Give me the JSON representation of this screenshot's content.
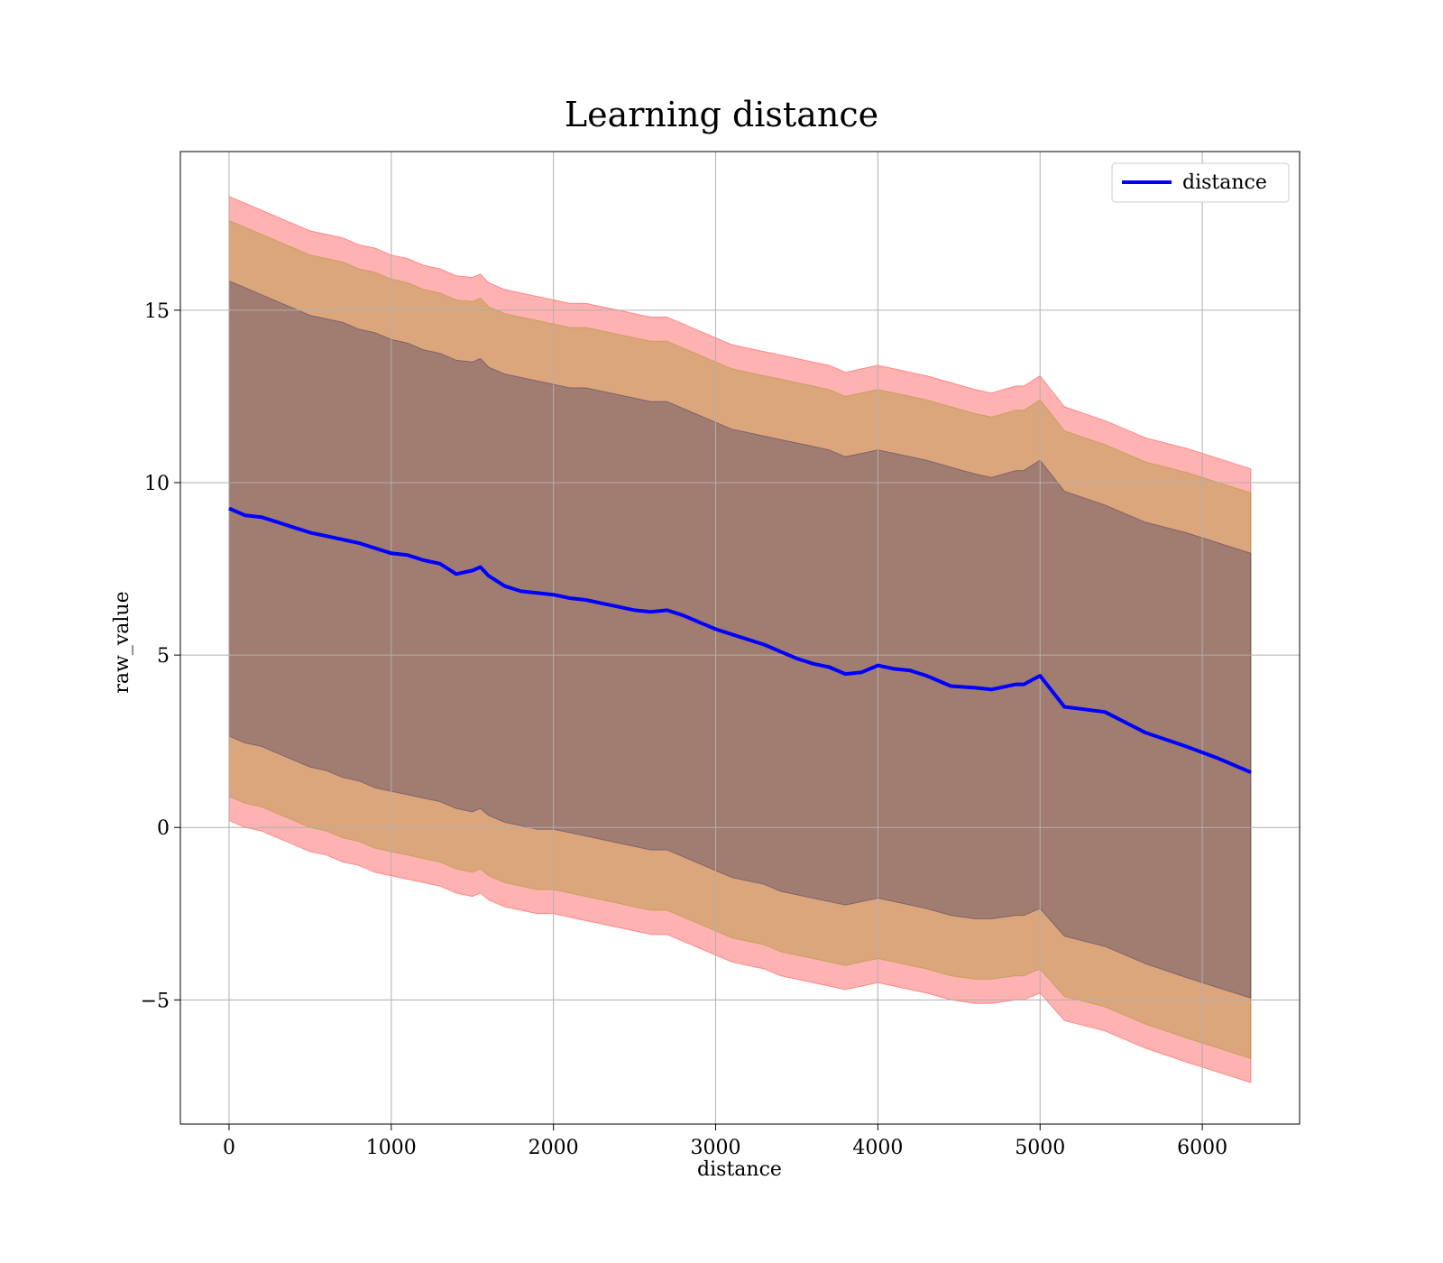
{
  "chart_data": {
    "type": "line",
    "title": "Learning distance",
    "xlabel": "distance",
    "ylabel": "raw_value",
    "xlim": [
      -300,
      6600
    ],
    "ylim": [
      -8.6,
      19.6
    ],
    "xticks": [
      0,
      1000,
      2000,
      3000,
      4000,
      5000,
      6000
    ],
    "xtick_labels": [
      "0",
      "1000",
      "2000",
      "3000",
      "4000",
      "5000",
      "6000"
    ],
    "yticks": [
      -5,
      0,
      5,
      10,
      15
    ],
    "ytick_labels": [
      "−5",
      "0",
      "5",
      "10",
      "15"
    ],
    "grid": true,
    "legend": {
      "position": "top-right",
      "entries": [
        "distance"
      ]
    },
    "colors": {
      "line": "#0000ff",
      "band_outer": "#ff0000",
      "band_middle": "#8c8c00",
      "band_inner": "#1a1a5a",
      "grid": "#b0b0b0"
    },
    "x": [
      0,
      100,
      200,
      300,
      400,
      500,
      600,
      700,
      800,
      900,
      1000,
      1100,
      1200,
      1300,
      1400,
      1500,
      1550,
      1600,
      1700,
      1800,
      1900,
      2000,
      2100,
      2200,
      2300,
      2400,
      2500,
      2600,
      2700,
      2800,
      2900,
      3000,
      3100,
      3200,
      3300,
      3400,
      3500,
      3600,
      3700,
      3800,
      3900,
      4000,
      4100,
      4200,
      4300,
      4450,
      4600,
      4700,
      4850,
      4900,
      5000,
      5150,
      5400,
      5650,
      5900,
      6100,
      6300
    ],
    "series": [
      {
        "name": "distance",
        "values": [
          9.25,
          9.05,
          9.0,
          8.85,
          8.7,
          8.55,
          8.45,
          8.35,
          8.25,
          8.1,
          7.95,
          7.9,
          7.75,
          7.65,
          7.35,
          7.45,
          7.55,
          7.3,
          7.0,
          6.85,
          6.8,
          6.75,
          6.65,
          6.6,
          6.5,
          6.4,
          6.3,
          6.25,
          6.3,
          6.15,
          5.95,
          5.75,
          5.6,
          5.45,
          5.3,
          5.1,
          4.9,
          4.75,
          4.65,
          4.45,
          4.5,
          4.7,
          4.6,
          4.55,
          4.4,
          4.1,
          4.05,
          4.0,
          4.15,
          4.15,
          4.4,
          3.5,
          3.35,
          2.75,
          2.35,
          2.0,
          1.6
        ]
      }
    ],
    "bands": [
      {
        "name": "outer",
        "upper": [
          18.3,
          18.1,
          17.9,
          17.7,
          17.5,
          17.3,
          17.2,
          17.1,
          16.9,
          16.8,
          16.6,
          16.5,
          16.3,
          16.2,
          16.0,
          15.95,
          16.05,
          15.8,
          15.6,
          15.5,
          15.4,
          15.3,
          15.2,
          15.2,
          15.1,
          15.0,
          14.9,
          14.8,
          14.8,
          14.6,
          14.4,
          14.2,
          14.0,
          13.9,
          13.8,
          13.7,
          13.6,
          13.5,
          13.4,
          13.2,
          13.3,
          13.4,
          13.3,
          13.2,
          13.1,
          12.9,
          12.7,
          12.6,
          12.8,
          12.8,
          13.1,
          12.2,
          11.8,
          11.3,
          11.0,
          10.7,
          10.4
        ],
        "lower": [
          0.2,
          0.0,
          -0.1,
          -0.3,
          -0.5,
          -0.7,
          -0.8,
          -1.0,
          -1.1,
          -1.3,
          -1.4,
          -1.5,
          -1.6,
          -1.7,
          -1.9,
          -2.0,
          -1.9,
          -2.1,
          -2.3,
          -2.4,
          -2.5,
          -2.5,
          -2.6,
          -2.7,
          -2.8,
          -2.9,
          -3.0,
          -3.1,
          -3.1,
          -3.3,
          -3.5,
          -3.7,
          -3.9,
          -4.0,
          -4.1,
          -4.3,
          -4.4,
          -4.5,
          -4.6,
          -4.7,
          -4.6,
          -4.5,
          -4.6,
          -4.7,
          -4.8,
          -5.0,
          -5.1,
          -5.1,
          -5.0,
          -5.0,
          -4.8,
          -5.6,
          -5.9,
          -6.4,
          -6.8,
          -7.1,
          -7.4
        ]
      },
      {
        "name": "middle",
        "upper": [
          17.6,
          17.4,
          17.2,
          17.0,
          16.8,
          16.6,
          16.5,
          16.4,
          16.2,
          16.1,
          15.9,
          15.8,
          15.6,
          15.5,
          15.3,
          15.25,
          15.35,
          15.1,
          14.9,
          14.8,
          14.7,
          14.6,
          14.5,
          14.5,
          14.4,
          14.3,
          14.2,
          14.1,
          14.1,
          13.9,
          13.7,
          13.5,
          13.3,
          13.2,
          13.1,
          13.0,
          12.9,
          12.8,
          12.7,
          12.5,
          12.6,
          12.7,
          12.6,
          12.5,
          12.4,
          12.2,
          12.0,
          11.9,
          12.1,
          12.1,
          12.4,
          11.5,
          11.1,
          10.6,
          10.3,
          10.0,
          9.7
        ],
        "lower": [
          0.9,
          0.7,
          0.6,
          0.4,
          0.2,
          0.0,
          -0.1,
          -0.3,
          -0.4,
          -0.6,
          -0.7,
          -0.8,
          -0.9,
          -1.0,
          -1.2,
          -1.3,
          -1.2,
          -1.4,
          -1.6,
          -1.7,
          -1.8,
          -1.8,
          -1.9,
          -2.0,
          -2.1,
          -2.2,
          -2.3,
          -2.4,
          -2.4,
          -2.6,
          -2.8,
          -3.0,
          -3.2,
          -3.3,
          -3.4,
          -3.6,
          -3.7,
          -3.8,
          -3.9,
          -4.0,
          -3.9,
          -3.8,
          -3.9,
          -4.0,
          -4.1,
          -4.3,
          -4.4,
          -4.4,
          -4.3,
          -4.3,
          -4.1,
          -4.9,
          -5.2,
          -5.7,
          -6.1,
          -6.4,
          -6.7
        ]
      },
      {
        "name": "inner",
        "upper": [
          15.85,
          15.65,
          15.45,
          15.25,
          15.05,
          14.85,
          14.75,
          14.65,
          14.45,
          14.35,
          14.15,
          14.05,
          13.85,
          13.75,
          13.55,
          13.5,
          13.6,
          13.35,
          13.15,
          13.05,
          12.95,
          12.85,
          12.75,
          12.75,
          12.65,
          12.55,
          12.45,
          12.35,
          12.35,
          12.15,
          11.95,
          11.75,
          11.55,
          11.45,
          11.35,
          11.25,
          11.15,
          11.05,
          10.95,
          10.75,
          10.85,
          10.95,
          10.85,
          10.75,
          10.65,
          10.45,
          10.25,
          10.15,
          10.35,
          10.35,
          10.65,
          9.75,
          9.35,
          8.85,
          8.55,
          8.25,
          7.95
        ],
        "lower": [
          2.65,
          2.45,
          2.35,
          2.15,
          1.95,
          1.75,
          1.65,
          1.45,
          1.35,
          1.15,
          1.05,
          0.95,
          0.85,
          0.75,
          0.55,
          0.45,
          0.55,
          0.35,
          0.15,
          0.05,
          -0.05,
          -0.05,
          -0.15,
          -0.25,
          -0.35,
          -0.45,
          -0.55,
          -0.65,
          -0.65,
          -0.85,
          -1.05,
          -1.25,
          -1.45,
          -1.55,
          -1.65,
          -1.85,
          -1.95,
          -2.05,
          -2.15,
          -2.25,
          -2.15,
          -2.05,
          -2.15,
          -2.25,
          -2.35,
          -2.55,
          -2.65,
          -2.65,
          -2.55,
          -2.55,
          -2.35,
          -3.15,
          -3.45,
          -3.95,
          -4.35,
          -4.65,
          -4.95
        ]
      }
    ]
  }
}
